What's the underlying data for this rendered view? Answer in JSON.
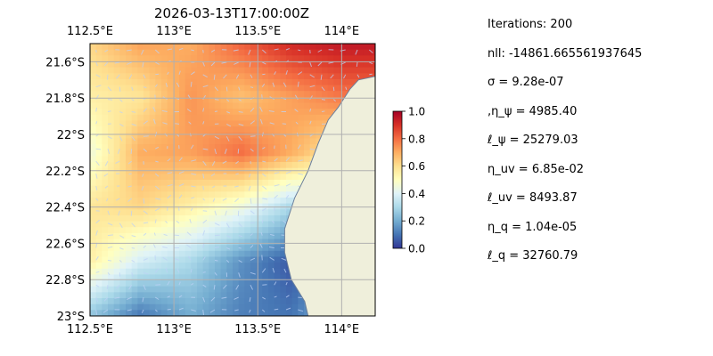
{
  "chart_data": {
    "type": "heatmap",
    "title": "2026-03-13T17:00:00Z",
    "x_tick_labels": [
      "112.5°E",
      "113°E",
      "113.5°E",
      "114°E"
    ],
    "y_tick_labels": [
      "21.6°S",
      "21.8°S",
      "22°S",
      "22.2°S",
      "22.4°S",
      "22.6°S",
      "22.8°S",
      "23°S"
    ],
    "x_ticks_deg": [
      112.5,
      113.0,
      113.5,
      114.0
    ],
    "y_ticks_deg": [
      -21.6,
      -21.8,
      -22.0,
      -22.2,
      -22.4,
      -22.6,
      -22.8,
      -23.0
    ],
    "xlim": [
      112.5,
      114.2
    ],
    "ylim": [
      -23.0,
      -21.5
    ],
    "grid": true,
    "colorbar": {
      "ticks": [
        "0.0",
        "0.2",
        "0.4",
        "0.6",
        "0.8",
        "1.0"
      ],
      "range": [
        0,
        1
      ],
      "colormap": "RdYlBu_r"
    },
    "land_color": "#efefdb",
    "ocean_color": "#97b6e1",
    "grid_color": "#b0b0b0",
    "field": {
      "grid_lon": [
        112.5,
        112.8,
        113.1,
        113.4,
        113.7,
        114.0
      ],
      "grid_lat": [
        -21.5,
        -21.8,
        -22.1,
        -22.4,
        -22.7,
        -23.0
      ],
      "values": [
        [
          0.62,
          0.72,
          0.7,
          0.82,
          0.92,
          0.95
        ],
        [
          0.55,
          0.58,
          0.74,
          0.66,
          0.72,
          0.78
        ],
        [
          0.45,
          0.7,
          0.72,
          0.8,
          0.7,
          0.55
        ],
        [
          0.58,
          0.62,
          0.55,
          0.45,
          0.3,
          0.4
        ],
        [
          0.55,
          0.38,
          0.3,
          0.15,
          0.05,
          0.2
        ],
        [
          0.25,
          0.1,
          0.2,
          0.12,
          0.1,
          0.25
        ]
      ]
    },
    "coastline_deg": [
      [
        114.2,
        -21.68
      ],
      [
        114.1,
        -21.7
      ],
      [
        114.05,
        -21.75
      ],
      [
        113.98,
        -21.85
      ],
      [
        113.92,
        -21.92
      ],
      [
        113.86,
        -22.05
      ],
      [
        113.8,
        -22.2
      ],
      [
        113.72,
        -22.35
      ],
      [
        113.66,
        -22.52
      ],
      [
        113.66,
        -22.65
      ],
      [
        113.7,
        -22.8
      ],
      [
        113.78,
        -22.92
      ],
      [
        113.8,
        -23.0
      ]
    ]
  },
  "stats": [
    "Iterations: 200",
    "nll: -14861.665561937645",
    "σ = 9.28e-07",
    ",η_ψ = 4985.40",
    "ℓ_ψ = 25279.03",
    "η_uv = 6.85e-02",
    "ℓ_uv = 8493.87",
    "η_q = 1.04e-05",
    "ℓ_q = 32760.79"
  ]
}
